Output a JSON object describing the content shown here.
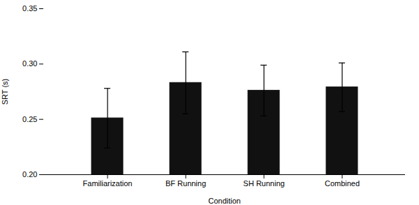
{
  "chart_data": {
    "type": "bar",
    "categories": [
      "Familiarization",
      "BF Running",
      "SH Running",
      "Combined"
    ],
    "values": [
      0.251,
      0.283,
      0.276,
      0.279
    ],
    "errors": [
      0.027,
      0.028,
      0.023,
      0.022
    ],
    "color": "#111111",
    "xlabel": "Condition",
    "ylabel": "SRT (s)",
    "ylim": [
      0.2,
      0.35
    ],
    "yticks": [
      {
        "value": 0.2,
        "label": "0.20"
      },
      0.25,
      {
        "value": 0.3,
        "label": "0.30"
      },
      0.35
    ],
    "grid": false
  }
}
